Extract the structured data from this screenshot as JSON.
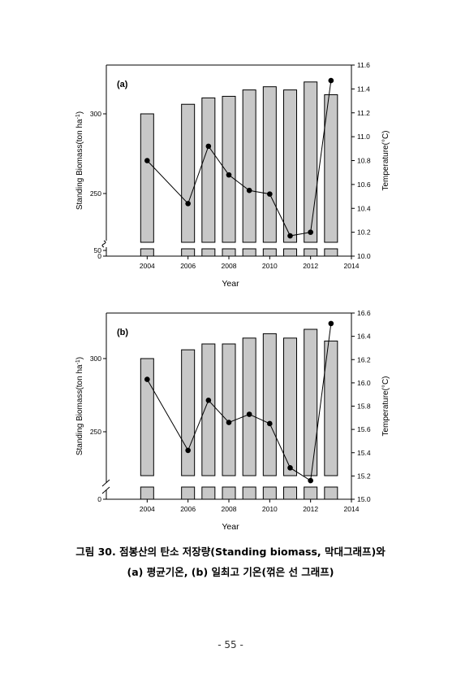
{
  "chart_data": [
    {
      "type": "bar",
      "panel_label": "(a)",
      "x": [
        2004,
        2006,
        2007,
        2008,
        2009,
        2010,
        2011,
        2012,
        2013
      ],
      "xlim": [
        2002,
        2014
      ],
      "xticks": [
        "2004",
        "2006",
        "2008",
        "2010",
        "2012",
        "2014"
      ],
      "xlabel": "Year",
      "ylabel": "Standing Biomass(ton ha-1)",
      "y2label": "Temperature(°C)",
      "ylim": [
        0,
        320
      ],
      "y_axis_break": [
        50,
        215
      ],
      "yticks_left": [
        "0",
        "50",
        "250",
        "300"
      ],
      "y2lim": [
        10.0,
        11.6
      ],
      "y2ticks": [
        "10.0",
        "10.2",
        "10.4",
        "10.6",
        "10.8",
        "11.0",
        "11.2",
        "11.4",
        "11.6"
      ],
      "series": [
        {
          "type": "bar",
          "axis": "left",
          "values": [
            300,
            306,
            310,
            311,
            315,
            317,
            315,
            320,
            312
          ]
        },
        {
          "type": "line",
          "axis": "right",
          "values": [
            10.8,
            10.44,
            10.92,
            10.68,
            10.55,
            10.52,
            10.17,
            10.2,
            11.47
          ]
        }
      ]
    },
    {
      "type": "bar",
      "panel_label": "(b)",
      "x": [
        2004,
        2006,
        2007,
        2008,
        2009,
        2010,
        2011,
        2012,
        2013
      ],
      "xlim": [
        2002,
        2014
      ],
      "xticks": [
        "2004",
        "2006",
        "2008",
        "2010",
        "2012",
        "2014"
      ],
      "xlabel": "Year",
      "ylabel": "Standing Biomass(ton ha-1)",
      "y2label": "Temperature(°C)",
      "ylim": [
        0,
        325
      ],
      "y_axis_break": [
        10,
        220
      ],
      "yticks_left": [
        "0",
        "250",
        "300"
      ],
      "y2lim": [
        15.0,
        16.6
      ],
      "y2ticks": [
        "15.0",
        "15.2",
        "15.4",
        "15.6",
        "15.8",
        "16.0",
        "16.2",
        "16.4",
        "16.6"
      ],
      "series": [
        {
          "type": "bar",
          "axis": "left",
          "values": [
            300,
            306,
            310,
            310,
            314,
            317,
            314,
            320,
            312
          ]
        },
        {
          "type": "line",
          "axis": "right",
          "values": [
            16.03,
            15.42,
            15.85,
            15.66,
            15.73,
            15.65,
            15.27,
            15.16,
            16.51
          ]
        }
      ]
    }
  ],
  "caption": {
    "line1": "그림 30. 점봉산의 탄소 저장량(Standing biomass, 막대그래프)와",
    "line2": "(a) 평균기온, (b) 일최고 기온(꺾은 선 그래프)"
  },
  "page_number": "- 55 -"
}
